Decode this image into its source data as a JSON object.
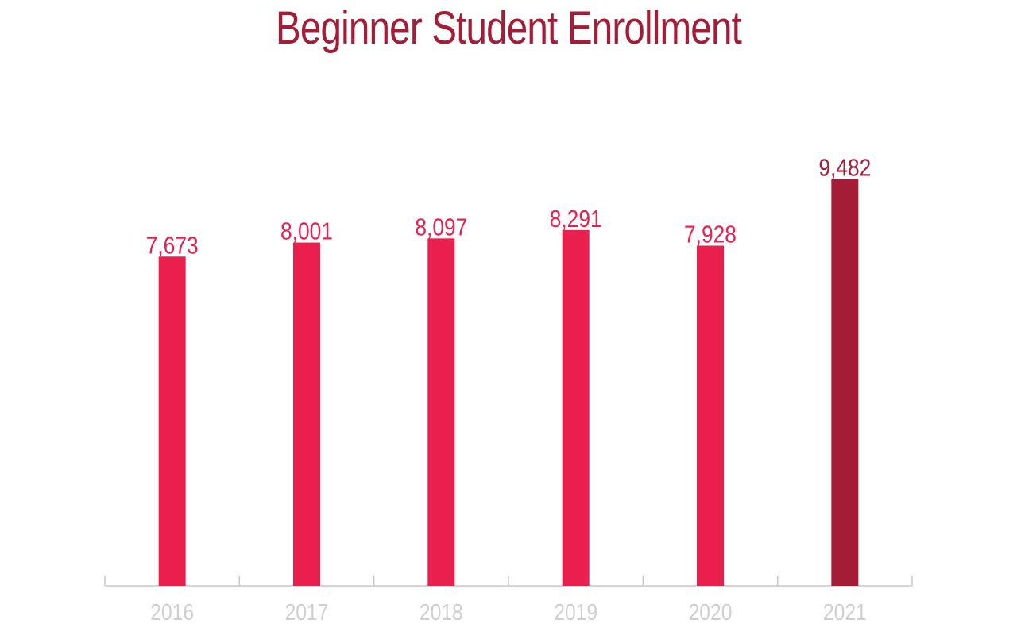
{
  "chart_data": {
    "type": "bar",
    "title": "Beginner Student Enrollment",
    "categories": [
      "2016",
      "2017",
      "2018",
      "2019",
      "2020",
      "2021"
    ],
    "values": [
      7673,
      8001,
      8097,
      8291,
      7928,
      9482
    ],
    "value_labels": [
      "7,673",
      "8,001",
      "8,097",
      "8,291",
      "7,928",
      "9,482"
    ],
    "xlabel": "",
    "ylabel": "",
    "ylim": [
      0,
      10000
    ],
    "grid": false,
    "legend": "none"
  },
  "colors": {
    "bar": "#ea1f4e",
    "highlight_bar": "#a51c36",
    "title": "#a51c36",
    "axis": "#c8c8c8",
    "tick_label": "#cfcfcf"
  }
}
